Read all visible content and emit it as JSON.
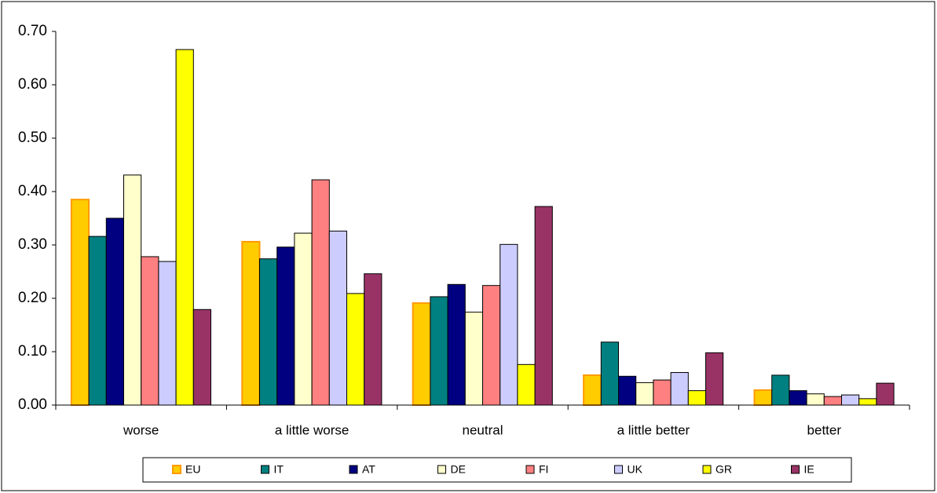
{
  "chart_data": {
    "type": "bar",
    "categories": [
      "worse",
      "a little worse",
      "neutral",
      "a little better",
      "better"
    ],
    "series": [
      {
        "name": "EU",
        "color": "#FFCC00",
        "values": [
          0.385,
          0.306,
          0.191,
          0.056,
          0.028
        ]
      },
      {
        "name": "IT",
        "color": "#008080",
        "values": [
          0.316,
          0.274,
          0.203,
          0.118,
          0.056
        ]
      },
      {
        "name": "AT",
        "color": "#000080",
        "values": [
          0.35,
          0.296,
          0.226,
          0.054,
          0.027
        ]
      },
      {
        "name": "DE",
        "color": "#FFFFCC",
        "values": [
          0.431,
          0.322,
          0.174,
          0.042,
          0.021
        ]
      },
      {
        "name": "FI",
        "color": "#FF8080",
        "values": [
          0.278,
          0.422,
          0.224,
          0.047,
          0.016
        ]
      },
      {
        "name": "UK",
        "color": "#CCCCFF",
        "values": [
          0.269,
          0.326,
          0.301,
          0.061,
          0.019
        ]
      },
      {
        "name": "GR",
        "color": "#FFFF00",
        "values": [
          0.666,
          0.209,
          0.076,
          0.027,
          0.012
        ]
      },
      {
        "name": "IE",
        "color": "#993366",
        "values": [
          0.179,
          0.246,
          0.372,
          0.098,
          0.041
        ]
      }
    ],
    "ylim": [
      0,
      0.7
    ],
    "yticks": [
      {
        "value": 0,
        "label": "0.00"
      },
      {
        "value": 0.1,
        "label": "0.10"
      },
      {
        "value": 0.2,
        "label": "0.20"
      },
      {
        "value": 0.3,
        "label": "0.30"
      },
      {
        "value": 0.4,
        "label": "0.40"
      },
      {
        "value": 0.5,
        "label": "0.50"
      },
      {
        "value": 0.6,
        "label": "0.60"
      },
      {
        "value": 0.7,
        "label": "0.70"
      }
    ],
    "legend": "bottom"
  }
}
